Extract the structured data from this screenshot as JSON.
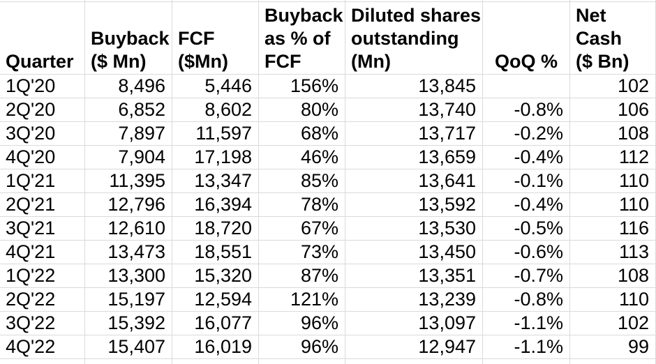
{
  "app": {
    "kind": "spreadsheet-table",
    "title": "Quarterly buyback, FCF and share count table"
  },
  "colors": {
    "grid_line": "#dadada",
    "cell_text": "#000000",
    "background": "#ffffff"
  },
  "table": {
    "headers": [
      "Quarter",
      "Buyback\n($ Mn)",
      "FCF\n($Mn)",
      "Buyback\nas % of\nFCF",
      "Diluted shares\noutstanding\n(Mn)",
      "QoQ %",
      "Net Cash\n($ Bn)"
    ],
    "rows": [
      [
        "1Q'20",
        "8,496",
        "5,446",
        "156%",
        "13,845",
        "",
        "102"
      ],
      [
        "2Q'20",
        "6,852",
        "8,602",
        "80%",
        "13,740",
        "-0.8%",
        "106"
      ],
      [
        "3Q'20",
        "7,897",
        "11,597",
        "68%",
        "13,717",
        "-0.2%",
        "108"
      ],
      [
        "4Q'20",
        "7,904",
        "17,198",
        "46%",
        "13,659",
        "-0.4%",
        "112"
      ],
      [
        "1Q'21",
        "11,395",
        "13,347",
        "85%",
        "13,641",
        "-0.1%",
        "110"
      ],
      [
        "2Q'21",
        "12,796",
        "16,394",
        "78%",
        "13,592",
        "-0.4%",
        "110"
      ],
      [
        "3Q'21",
        "12,610",
        "18,720",
        "67%",
        "13,530",
        "-0.5%",
        "116"
      ],
      [
        "4Q'21",
        "13,473",
        "18,551",
        "73%",
        "13,450",
        "-0.6%",
        "113"
      ],
      [
        "1Q'22",
        "13,300",
        "15,320",
        "87%",
        "13,351",
        "-0.7%",
        "108"
      ],
      [
        "2Q'22",
        "15,197",
        "12,594",
        "121%",
        "13,239",
        "-0.8%",
        "110"
      ],
      [
        "3Q'22",
        "15,392",
        "16,077",
        "96%",
        "13,097",
        "-1.1%",
        "102"
      ],
      [
        "4Q'22",
        "15,407",
        "16,019",
        "96%",
        "12,947",
        "-1.1%",
        "99"
      ]
    ]
  }
}
